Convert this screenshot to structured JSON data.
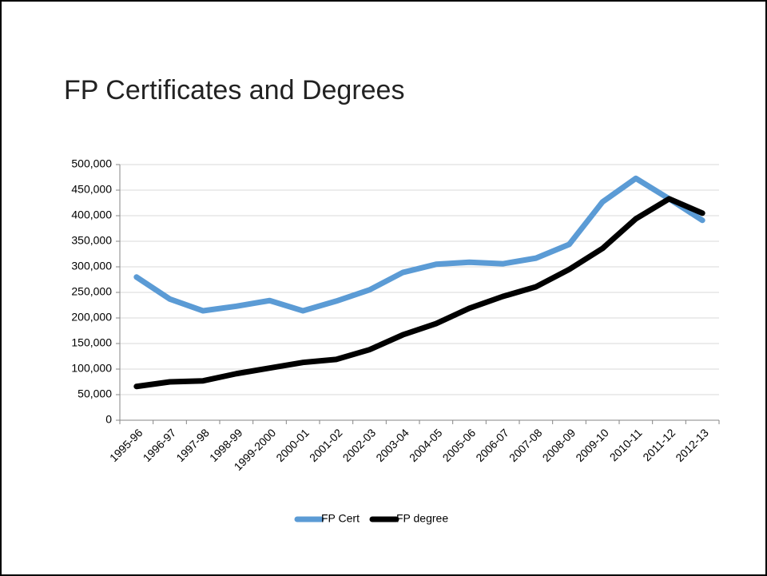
{
  "chart_data": {
    "type": "line",
    "title": "FP Certificates and Degrees",
    "categories": [
      "1995-96",
      "1996-97",
      "1997-98",
      "1998-99",
      "1999-2000",
      "2000-01",
      "2001-02",
      "2002-03",
      "2003-04",
      "2004-05",
      "2005-06",
      "2006-07",
      "2007-08",
      "2008-09",
      "2009-10",
      "2010-11",
      "2011-12",
      "2012-13"
    ],
    "series": [
      {
        "name": "FP Cert",
        "color": "#5b9bd5",
        "values": [
          280000,
          237000,
          214000,
          223000,
          234000,
          214000,
          233000,
          255000,
          289000,
          305000,
          309000,
          306000,
          317000,
          344000,
          427000,
          473000,
          433000,
          391000
        ]
      },
      {
        "name": "FP degree",
        "color": "#000000",
        "values": [
          66000,
          75000,
          77000,
          91000,
          102000,
          113000,
          119000,
          138000,
          167000,
          189000,
          219000,
          242000,
          261000,
          295000,
          336000,
          394000,
          433000,
          405000
        ]
      }
    ],
    "ylim": [
      0,
      500000
    ],
    "yticks": [
      0,
      {
        "value": 50000,
        "label": "50,000"
      },
      {
        "value": 100000,
        "label": "100,000"
      },
      {
        "value": 150000,
        "label": "150,000"
      },
      {
        "value": 200000,
        "label": "200,000"
      },
      {
        "value": 250000,
        "label": "250,000"
      },
      {
        "value": 300000,
        "label": "300,000"
      },
      {
        "value": 350000,
        "label": "350,000"
      },
      {
        "value": 400000,
        "label": "400,000"
      },
      {
        "value": 450000,
        "label": "450,000"
      },
      {
        "value": 500000,
        "label": "500,000"
      }
    ],
    "grid": true,
    "legend": "bottom"
  }
}
